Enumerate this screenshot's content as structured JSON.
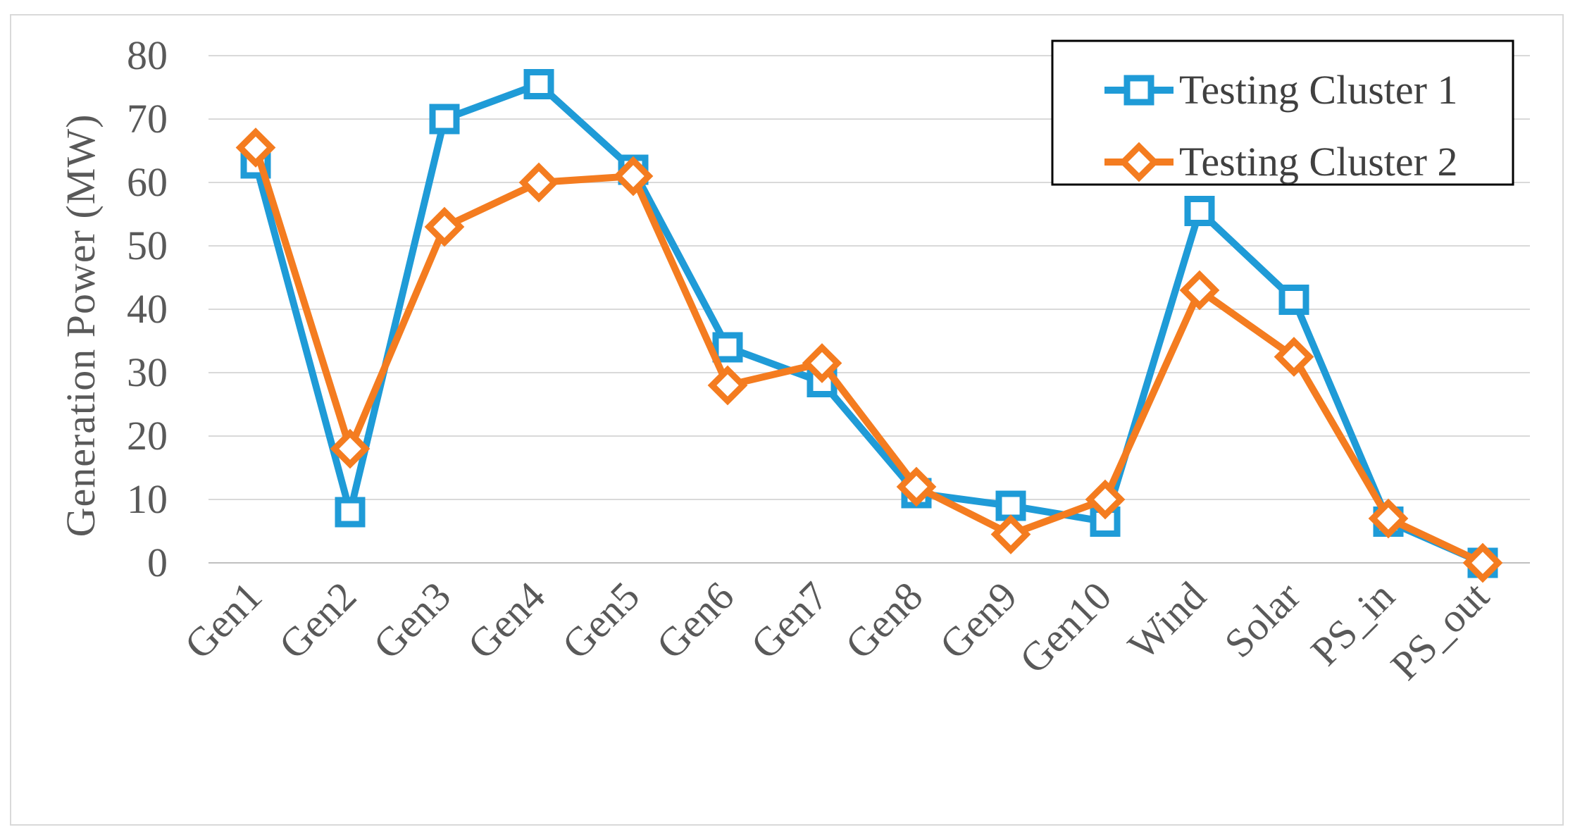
{
  "chart_data": {
    "type": "line",
    "title": "",
    "xlabel": "",
    "ylabel": "Generation Power (MW)",
    "ylim": [
      0,
      80
    ],
    "yticks": [
      "0",
      "10",
      "20",
      "30",
      "40",
      "50",
      "60",
      "70",
      "80"
    ],
    "grid": "horizontal",
    "legend_position": "top-right",
    "categories": [
      "Gen1",
      "Gen2",
      "Gen3",
      "Gen4",
      "Gen5",
      "Gen6",
      "Gen7",
      "Gen8",
      "Gen9",
      "Gen10",
      "Wind",
      "Solar",
      "PS_in",
      "PS_out"
    ],
    "series": [
      {
        "name": "Testing Cluster 1",
        "color": "#1f9bd7",
        "marker": "square",
        "values": [
          63,
          8,
          70,
          75.5,
          62,
          34,
          28.5,
          11,
          9,
          6.5,
          55.5,
          41.5,
          6.5,
          0
        ]
      },
      {
        "name": "Testing Cluster 2",
        "color": "#f47c20",
        "marker": "diamond",
        "values": [
          65.5,
          18,
          53,
          60,
          61,
          28,
          31.5,
          12,
          4.5,
          10,
          43,
          32.5,
          7,
          0
        ]
      }
    ]
  }
}
